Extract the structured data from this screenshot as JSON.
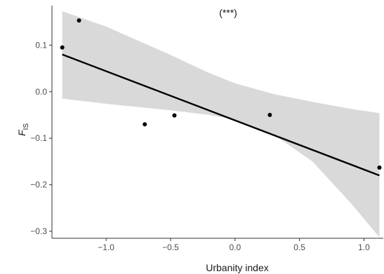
{
  "chart_data": {
    "type": "scatter",
    "title": "",
    "annotation": "(***)",
    "xlabel": "Urbanity index",
    "ylabel_main": "F",
    "ylabel_sub": "IS",
    "xlim": [
      -1.42,
      1.15
    ],
    "ylim": [
      -0.315,
      0.185
    ],
    "x_ticks": [
      -1.0,
      -0.5,
      0.0,
      0.5,
      1.0
    ],
    "x_tick_labels": [
      "−1.0",
      "−0.5",
      "0.0",
      "0.5",
      "1.0"
    ],
    "y_ticks": [
      -0.3,
      -0.2,
      -0.1,
      0.0,
      0.1
    ],
    "y_tick_labels": [
      "−0.3",
      "−0.2",
      "−0.1",
      "0.0",
      "0.1"
    ],
    "grid": false,
    "points": [
      {
        "x": -1.34,
        "y": 0.095
      },
      {
        "x": -1.21,
        "y": 0.153
      },
      {
        "x": -0.7,
        "y": -0.07
      },
      {
        "x": -0.47,
        "y": -0.051
      },
      {
        "x": 0.27,
        "y": -0.05
      },
      {
        "x": 1.12,
        "y": -0.163
      }
    ],
    "fit_line": {
      "x": [
        -1.34,
        1.12
      ],
      "y": [
        0.08,
        -0.18
      ]
    },
    "confidence_band": {
      "x": [
        -1.34,
        -1.0,
        -0.5,
        -0.2,
        0.0,
        0.3,
        0.6,
        0.9,
        1.12
      ],
      "upper": [
        0.173,
        0.14,
        0.079,
        0.04,
        0.018,
        -0.005,
        -0.022,
        -0.037,
        -0.046
      ],
      "lower": [
        -0.015,
        -0.026,
        -0.04,
        -0.05,
        -0.06,
        -0.092,
        -0.15,
        -0.24,
        -0.313
      ]
    },
    "colors": {
      "band": "#d9d9d9",
      "line": "#000000",
      "point": "#000000",
      "axis": "#333333"
    }
  }
}
